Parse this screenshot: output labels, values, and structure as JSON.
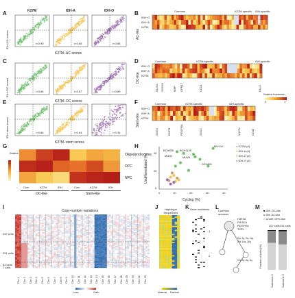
{
  "panels": [
    "A",
    "B",
    "C",
    "D",
    "E",
    "F",
    "G",
    "H",
    "I",
    "J",
    "K",
    "L",
    "M"
  ],
  "colors": {
    "k27m": "#6cbf6a",
    "idha": "#f5c24a",
    "idho": "#9a6bb0",
    "heat_low": "#fff6c0",
    "heat_high": "#b21818",
    "cnv_gain": "#c8322b",
    "cnv_loss": "#2f6db3"
  },
  "scatter_rows": [
    {
      "panel": "A",
      "ylabel": "IDH−AC scores",
      "xlabel": "K27M−AC scores",
      "groups": [
        "K27M",
        "IDH-A",
        "IDH-O"
      ],
      "r_values": [
        "r=0.90",
        "r=0.86",
        "r=0.86"
      ]
    },
    {
      "panel": "C",
      "ylabel": "IDH−OC scores",
      "xlabel": "K27M−OC scores",
      "groups": [
        "",
        "",
        ""
      ],
      "r_values": [
        "r=0.88",
        "r=0.87",
        "r=0.89"
      ]
    },
    {
      "panel": "E",
      "ylabel": "IDH−stem scores",
      "xlabel": "K27M−stem scores",
      "groups": [
        "",
        "",
        ""
      ],
      "r_values": [
        "r=0.86",
        "r=0.84",
        "r=0.34"
      ]
    }
  ],
  "heatmaps": {
    "B": {
      "side_label": "AC-like",
      "rows": [
        "IDH−O",
        "IDH−A",
        "K27M"
      ],
      "groups": [
        "Common",
        "K27M-specific",
        "IDH-specific"
      ]
    },
    "D": {
      "side_label": "OC-like",
      "rows": [
        "IDH−O",
        "IDH−A",
        "K27M"
      ],
      "groups": [
        "Common",
        "K27M-specific",
        "IDH-specific"
      ],
      "genes": [
        "OLIG2",
        "SOX10",
        "MBP",
        "GPR17",
        "CD24",
        "DLL3"
      ]
    },
    "F": {
      "side_label": "Stem-like",
      "rows": [
        "IDH−O",
        "IDH−A",
        "K27M"
      ],
      "groups": [
        "Common",
        "K27M-specific",
        "IDH-specific"
      ],
      "genes": [
        "SOX4",
        "EGFR",
        "PDGFRA",
        "SOX2",
        "MYCN",
        "CD44"
      ],
      "legend_title": "Relative expression",
      "legend_min": "0",
      "legend_max": "1"
    },
    "G": {
      "legend_title": "Relative expression",
      "rows": [
        "Oligodendrocytes",
        "OPC",
        "NPC"
      ],
      "cols": [
        "Com",
        "K27M",
        "IDH",
        "Com",
        "K27M",
        "IDH"
      ],
      "col_groups": [
        "OC-like",
        "Stem-like"
      ]
    }
  },
  "panel_h": {
    "ylabel": "Undifferentiated (%)",
    "xlabel": "Cycling (%)",
    "legend": [
      "K27M (#)",
      "IDH-A (#)",
      "IDH-O (#)",
      "IDH-O (#)"
    ],
    "point_labels": [
      "MUV10",
      "BCH836",
      "BCH1126",
      "MUV5",
      "SCHMG",
      "MGH1"
    ],
    "x_ticks": [
      "0",
      "10",
      "20",
      "30",
      "40"
    ],
    "y_ticks": [
      "0",
      "20",
      "40"
    ],
    "chart_data": {
      "type": "scatter",
      "xlabel": "Cycling (%)",
      "ylabel": "Undifferentiated (%)",
      "series": [
        {
          "values": [
            [
              11,
              44
            ],
            [
              15,
              42
            ],
            [
              22,
              38
            ],
            [
              25,
              35
            ],
            [
              30,
              27
            ],
            [
              33,
              48
            ],
            [
              21,
              41
            ],
            [
              13,
              31
            ],
            [
              10,
              27
            ],
            [
              18,
              22
            ]
          ]
        },
        {
          "values": [
            [
              7,
              14
            ],
            [
              9,
              16
            ],
            [
              12,
              11
            ],
            [
              10,
              9
            ]
          ]
        },
        {
          "values": [
            [
              8,
              19
            ],
            [
              11,
              13
            ],
            [
              6,
              10
            ]
          ]
        },
        {
          "values": [
            [
              5,
              11
            ],
            [
              7,
              6
            ],
            [
              9,
              8
            ]
          ]
        }
      ]
    }
  },
  "panel_i": {
    "title": "Copy-number variations",
    "row_labels": [
      "237 cells",
      "201 cells",
      "34 cells",
      "7 cells"
    ],
    "chromosomes": [
      "Chr 1",
      "Chr 2",
      "Chr 3",
      "Chr 4",
      "Chr 5",
      "Chr 6",
      "Chr 7",
      "Chr 8",
      "Chr 9",
      "Chr 10",
      "Chr 11",
      "Chr 12",
      "Chr 13",
      "Chr 14",
      "Chr 15",
      "Chr 16",
      "Chr 17",
      "Chr 18",
      "Chr 19",
      "Chr 20",
      "Chr 21",
      "Chr 22"
    ],
    "legend": [
      "Loss",
      "Gain"
    ]
  },
  "panel_j": {
    "title": "Haplotype frequencies",
    "legend": [
      "Maternal",
      "Paternal"
    ]
  },
  "panel_k": {
    "title": "Gene mutations",
    "clusters": [
      "1",
      "2"
    ]
  },
  "panel_l": {
    "root": "Common ancestor",
    "notes": [
      "H3F3A",
      "PIK3CA",
      "PDGFRA",
      "TP53",
      "Chr 1p, 9q, 11q",
      "Chr 14q, 16q",
      "Chr 2q, 5q, 6q"
    ]
  },
  "panel_m": {
    "ylabel": "Fraction of cells (%)",
    "legend": [
      "Diff. OC-like",
      "Diff. AC-like",
      "Undiff. OPC-like"
    ],
    "bar_counts": [
      "207 cells",
      "231 cells"
    ],
    "bar_names": [
      "Subclone 1",
      "Subclone 2"
    ],
    "chart_data": {
      "type": "bar",
      "categories": [
        "Subclone 1",
        "Subclone 2"
      ],
      "series": [
        {
          "name": "Diff. OC-like",
          "values": [
            2,
            3
          ]
        },
        {
          "name": "Diff. AC-like",
          "values": [
            30,
            33
          ]
        },
        {
          "name": "Undiff. OPC-like",
          "values": [
            68,
            64
          ]
        }
      ],
      "ylim": [
        0,
        100
      ]
    }
  }
}
